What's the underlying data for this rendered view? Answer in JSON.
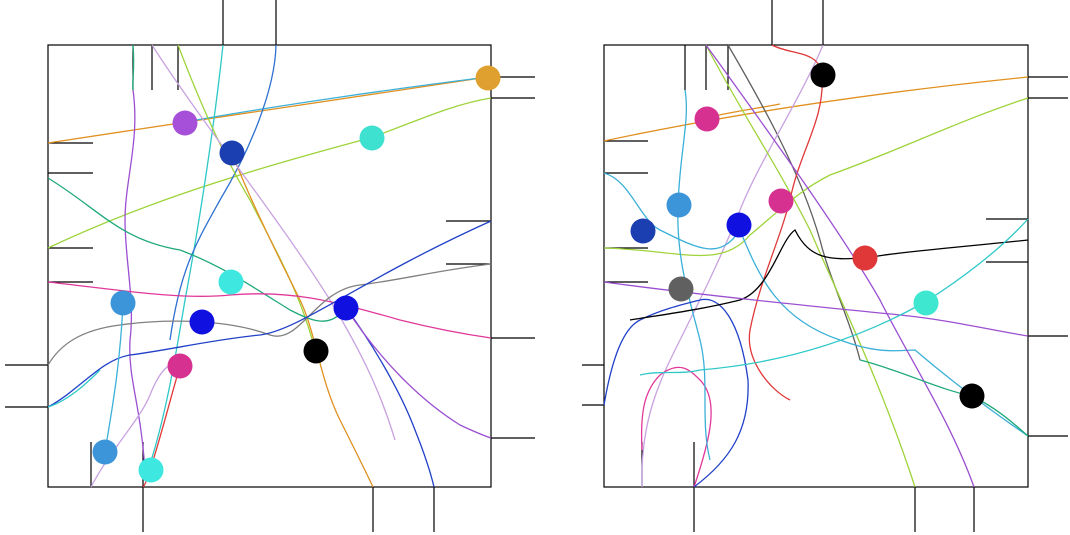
{
  "diagram": {
    "type": "routing-layout",
    "panels": [
      {
        "name": "left-layout",
        "wire_colors": [
          "#3bb0d8",
          "#c8a2e0",
          "#9ed33a",
          "#1fa97a",
          "#2040c8",
          "#e0389a",
          "#808080",
          "#9b4fd0",
          "#e03838",
          "#e0901f",
          "#2ec8c8",
          "#2f70d0"
        ],
        "node_colors": [
          "#e0a030",
          "#a64fd8",
          "#1b3fb0",
          "#3ee0d0",
          "#3ee8e0",
          "#3b95d8",
          "#1010e0",
          "#1010e0",
          "#000000",
          "#d63090",
          "#3b95d8",
          "#3ee8e0"
        ]
      },
      {
        "name": "right-layout",
        "wire_colors": [
          "#e0901f",
          "#606060",
          "#c8a2e0",
          "#9ed33a",
          "#e0389a",
          "#3bb0d8",
          "#2040c8",
          "#9b4fd0",
          "#2ec8c8",
          "#000000",
          "#1fa97a",
          "#e03838"
        ],
        "node_colors": [
          "#000000",
          "#d63090",
          "#3b95d8",
          "#1b3fb0",
          "#1010e0",
          "#d63090",
          "#e03838",
          "#606060",
          "#3ee8d0",
          "#000000"
        ]
      }
    ]
  }
}
